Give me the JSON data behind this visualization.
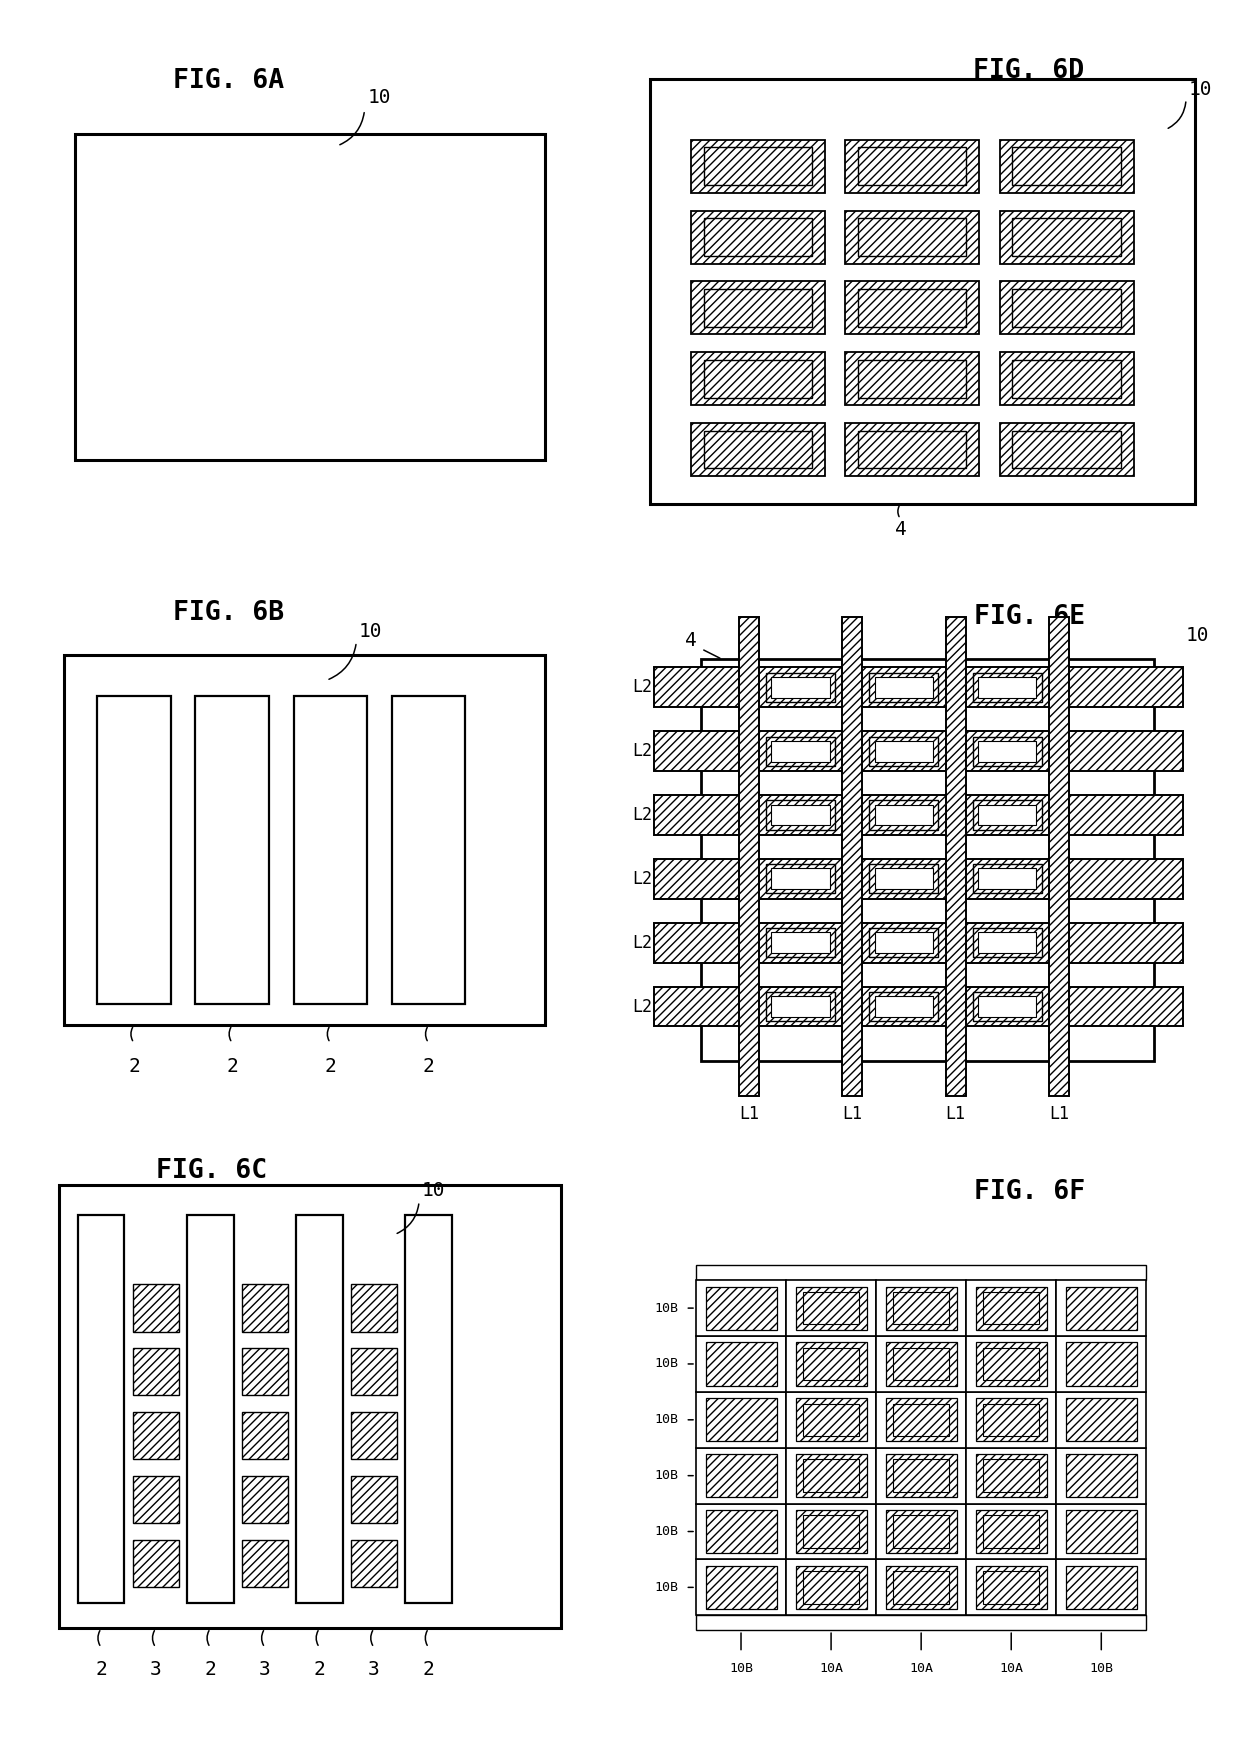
{
  "bg": "#ffffff",
  "fw": 12.4,
  "fh": 17.44,
  "dpi": 100,
  "fs_title": 19,
  "fs_label": 14,
  "fs_annot": 12,
  "panels": {
    "6A": [
      0.03,
      0.695,
      0.44,
      0.275
    ],
    "6B": [
      0.03,
      0.368,
      0.44,
      0.295
    ],
    "6C": [
      0.03,
      0.025,
      0.44,
      0.318
    ],
    "6D": [
      0.51,
      0.685,
      0.47,
      0.29
    ],
    "6E": [
      0.51,
      0.355,
      0.47,
      0.305
    ],
    "6F": [
      0.51,
      0.025,
      0.47,
      0.305
    ]
  }
}
